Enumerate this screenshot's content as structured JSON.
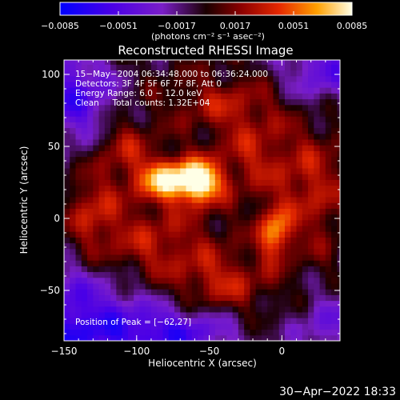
{
  "chart_data": {
    "type": "heatmap",
    "title": "Reconstructed RHESSI Image",
    "xlabel": "Heliocentric X (arcsec)",
    "ylabel": "Heliocentric Y (arcsec)",
    "xlim": [
      -150,
      40
    ],
    "ylim": [
      -85,
      110
    ],
    "x_ticks": [
      -150,
      -100,
      -50,
      0
    ],
    "x_tick_labels": [
      "−150",
      "−100",
      "−50",
      "0"
    ],
    "y_ticks": [
      -50,
      0,
      50,
      100
    ],
    "y_tick_labels": [
      "−50",
      "0",
      "50",
      "100"
    ],
    "colorbar": {
      "ticks": [
        -0.0085,
        -0.0051,
        -0.0017,
        0.0017,
        0.0051,
        0.0085
      ],
      "tick_labels": [
        "−0.0085",
        "−0.0051",
        "−0.0017",
        "0.0017",
        "0.0051",
        "0.0085"
      ],
      "unit_label": "(photons cm⁻² s⁻¹ asec⁻²)",
      "range": [
        -0.0085,
        0.0085
      ]
    },
    "annotations": [
      "15−May−2004 06:34:48.000 to 06:36:24.000",
      "Detectors: 3F 4F 5F 6F 7F 8F, Att 0",
      "Energy Range: 6.0 − 12.0 keV",
      "Clean     Total counts: 1.32E+04"
    ],
    "peak_label": "Position of Peak = [−62,27]",
    "peak": {
      "x": -62,
      "y": 27,
      "value": 0.0085
    },
    "sources": [
      {
        "x": -75,
        "y": 27,
        "sx": 17,
        "sy": 10,
        "amp": 0.0085
      },
      {
        "x": -55,
        "y": 25,
        "sx": 9,
        "sy": 10,
        "amp": 0.0062
      },
      {
        "x": -110,
        "y": 50,
        "sx": 14,
        "sy": 14,
        "amp": 0.003
      },
      {
        "x": -130,
        "y": 5,
        "sx": 12,
        "sy": 18,
        "amp": 0.003
      },
      {
        "x": -5,
        "y": -10,
        "sx": 7,
        "sy": 12,
        "amp": 0.0062
      },
      {
        "x": -90,
        "y": -20,
        "sx": 30,
        "sy": 20,
        "amp": 0.0032
      },
      {
        "x": -20,
        "y": 45,
        "sx": 18,
        "sy": 20,
        "amp": 0.0028
      },
      {
        "x": -40,
        "y": 80,
        "sx": 25,
        "sy": 12,
        "amp": 0.0025
      },
      {
        "x": 20,
        "y": 20,
        "sx": 16,
        "sy": 28,
        "amp": 0.003
      },
      {
        "x": -40,
        "y": -45,
        "sx": 22,
        "sy": 14,
        "amp": 0.003
      }
    ],
    "negative_regions": [
      {
        "x": -145,
        "y": 85,
        "sx": 22,
        "sy": 25,
        "amp": 0.0055
      },
      {
        "x": -150,
        "y": -75,
        "sx": 45,
        "sy": 30,
        "amp": 0.0065
      },
      {
        "x": -70,
        "y": -80,
        "sx": 30,
        "sy": 12,
        "amp": 0.0045
      },
      {
        "x": 30,
        "y": 105,
        "sx": 22,
        "sy": 18,
        "amp": 0.0045
      },
      {
        "x": 35,
        "y": -75,
        "sx": 20,
        "sy": 18,
        "amp": 0.0035
      }
    ]
  },
  "footer": {
    "timestamp": "30−Apr−2022 18:33"
  }
}
